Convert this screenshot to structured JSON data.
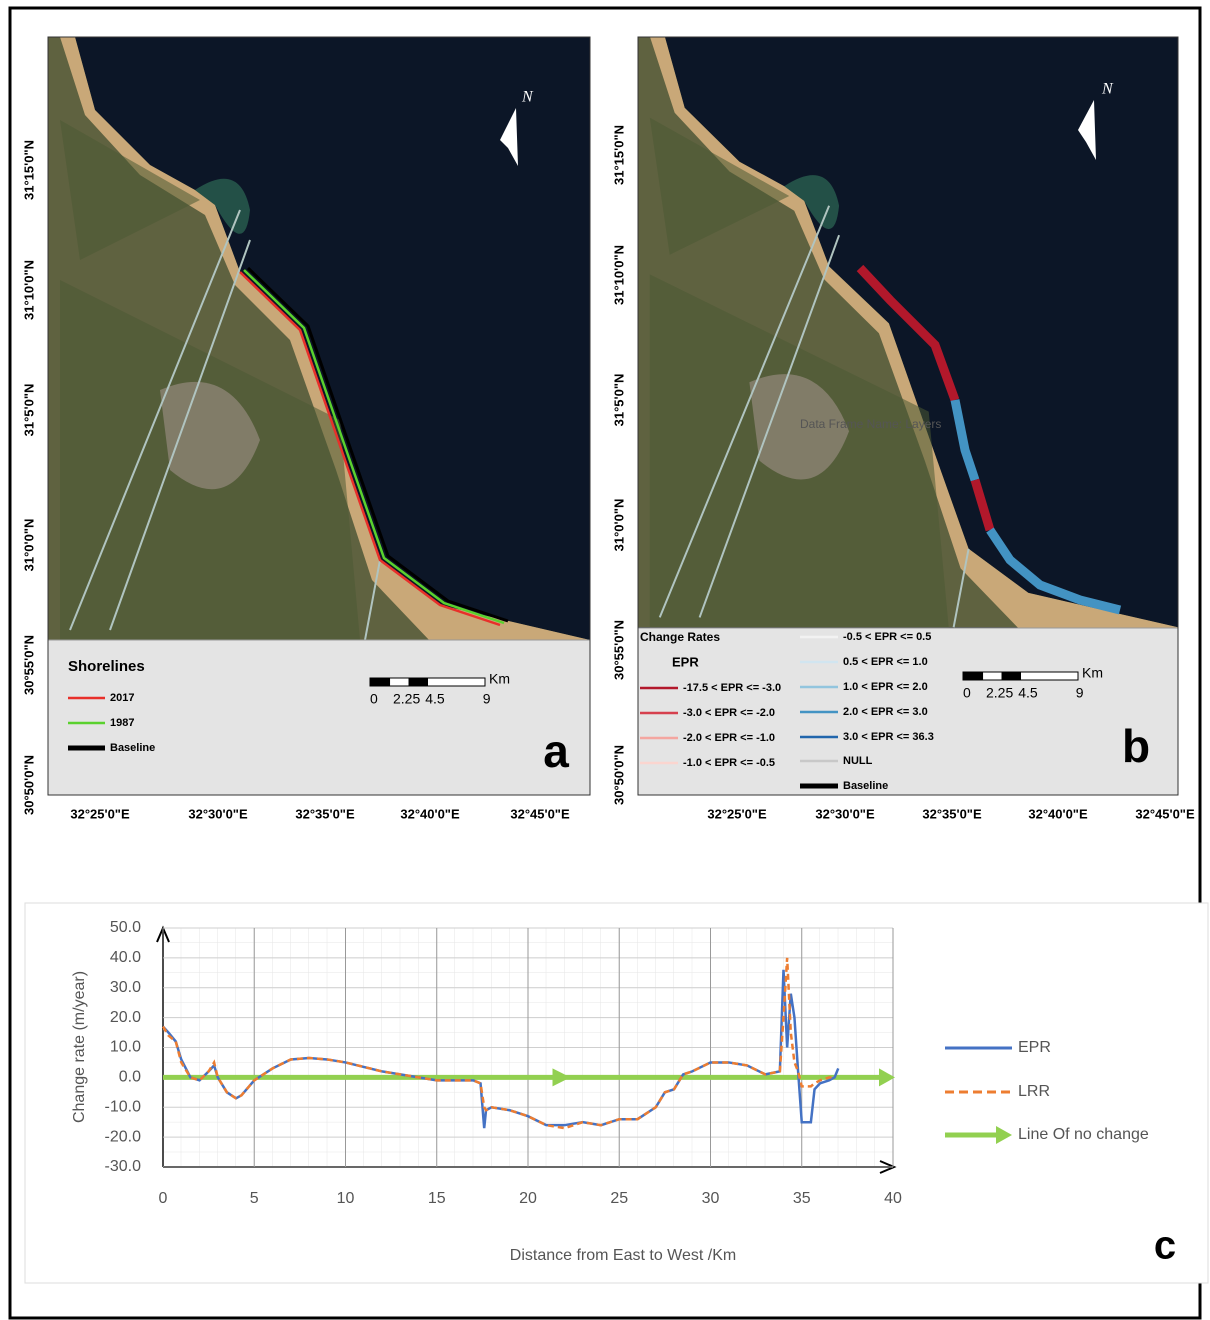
{
  "maps": [
    {
      "panel": "a",
      "lat_labels": [
        "31°15'0\"N",
        "31°10'0\"N",
        "31°5'0\"N",
        "31°0'0\"N",
        "30°55'0\"N",
        "30°50'0\"N"
      ],
      "lon_labels": [
        "32°25'0\"E",
        "32°30'0\"E",
        "32°35'0\"E",
        "32°40'0\"E",
        "32°45'0\"E"
      ],
      "north": "N",
      "legend": {
        "title": "Shorelines",
        "items": [
          {
            "label": "2017",
            "color": "#e8302a"
          },
          {
            "label": "1987",
            "color": "#5ad12e"
          },
          {
            "label": "Baseline",
            "color": "#000000"
          }
        ]
      },
      "scale": {
        "unit": "Km",
        "labels": [
          "0",
          "2.25",
          "4.5",
          "9"
        ]
      }
    },
    {
      "panel": "b",
      "lat_labels": [
        "31°15'0\"N",
        "31°10'0\"N",
        "31°5'0\"N",
        "31°0'0\"N",
        "30°55'0\"N",
        "30°50'0\"N"
      ],
      "lon_labels": [
        "32°25'0\"E",
        "32°30'0\"E",
        "32°35'0\"E",
        "32°40'0\"E",
        "32°45'0\"E"
      ],
      "north": "N",
      "frame_label": "Data Frame Name: Layers",
      "legend": {
        "title": "Change Rates",
        "subtitle": "EPR",
        "items": [
          {
            "label": "-17.5 < EPR <= -3.0",
            "color": "#b2182b"
          },
          {
            "label": "-3.0 < EPR <= -2.0",
            "color": "#d6404e"
          },
          {
            "label": "-2.0 < EPR <= -1.0",
            "color": "#f4a6a0"
          },
          {
            "label": "-1.0 < EPR <= -0.5",
            "color": "#fbd5cf"
          },
          {
            "label": "-0.5 < EPR <= 0.5",
            "color": "#f2f2f2"
          },
          {
            "label": "0.5 < EPR <= 1.0",
            "color": "#d1e5f0"
          },
          {
            "label": "1.0 < EPR <= 2.0",
            "color": "#92c5de"
          },
          {
            "label": "2.0 < EPR <= 3.0",
            "color": "#4393c3"
          },
          {
            "label": "3.0 < EPR <= 36.3",
            "color": "#2166ac"
          },
          {
            "label": "NULL",
            "color": "#c8c8c8"
          },
          {
            "label": "Baseline",
            "color": "#000000"
          }
        ]
      },
      "scale": {
        "unit": "Km",
        "labels": [
          "0",
          "2.25",
          "4.5",
          "9"
        ]
      }
    }
  ],
  "chart_data": {
    "type": "line",
    "panel": "c",
    "x_label": "Distance from East to West /Km",
    "y_label": "Change rate (m/year)",
    "x": [
      0,
      0.3,
      0.7,
      1,
      1.5,
      2,
      2.5,
      2.8,
      3,
      3.5,
      4,
      4.3,
      5,
      6,
      7,
      8,
      9,
      10,
      11,
      12,
      13,
      14,
      15,
      16,
      17,
      17.4,
      17.6,
      17.7,
      18,
      19,
      20,
      21,
      22,
      23,
      24,
      25,
      26,
      27,
      27.5,
      28,
      28.5,
      29,
      30,
      31,
      32,
      33,
      33.8,
      34,
      34.2,
      34.4,
      34.6,
      34.8,
      35,
      35.5,
      35.7,
      36,
      36.5,
      36.8,
      37
    ],
    "series": [
      {
        "name": "EPR",
        "color": "#4472c4",
        "dashed": false,
        "values": [
          17,
          15,
          12,
          6,
          0,
          -1,
          2,
          4,
          0,
          -5,
          -7,
          -6,
          -1,
          3,
          6,
          6.5,
          6,
          5,
          3.5,
          2,
          1,
          0,
          -1,
          -1,
          -1,
          -2,
          -17,
          -11,
          -10,
          -11,
          -13,
          -16,
          -16,
          -15,
          -16,
          -14,
          -14,
          -10,
          -5,
          -4,
          1,
          2,
          5,
          5,
          4,
          1,
          2,
          36,
          10,
          28,
          20,
          2,
          -15,
          -15,
          -4,
          -2,
          -1,
          0,
          3
        ]
      },
      {
        "name": "LRR",
        "color": "#ed7d31",
        "dashed": true,
        "values": [
          17,
          14,
          12,
          5,
          0,
          -1,
          2,
          5,
          0,
          -5,
          -7,
          -6,
          -1,
          3,
          6,
          6.5,
          6,
          5,
          3.5,
          2,
          1,
          0,
          -1,
          -1,
          -1,
          -2,
          -10,
          -11,
          -10,
          -11,
          -13,
          -16,
          -17,
          -15,
          -16,
          -14,
          -14,
          -10,
          -5,
          -4,
          1,
          2,
          5,
          5,
          4,
          1,
          2,
          20,
          40,
          15,
          5,
          2,
          -3,
          -3,
          -2,
          -1,
          0,
          0,
          null
        ]
      }
    ],
    "reference_line": {
      "name": "Line Of no change",
      "color": "#92d050",
      "value": 0
    },
    "xlim": [
      0,
      40
    ],
    "xticks": [
      0,
      5,
      10,
      15,
      20,
      25,
      30,
      35,
      40
    ],
    "ylim": [
      -30,
      50
    ],
    "yticks": [
      {
        "value": -30,
        "label": "-30.0"
      },
      {
        "value": -20,
        "label": "-20.0"
      },
      {
        "value": -10,
        "label": "-10.0"
      },
      {
        "value": 0,
        "label": "0.0"
      },
      {
        "value": 10,
        "label": "10.0"
      },
      {
        "value": 20,
        "label": "20.0"
      },
      {
        "value": 30,
        "label": "30.0"
      },
      {
        "value": 40,
        "label": "40.0"
      },
      {
        "value": 50,
        "label": "50.0"
      }
    ],
    "grid": true
  }
}
